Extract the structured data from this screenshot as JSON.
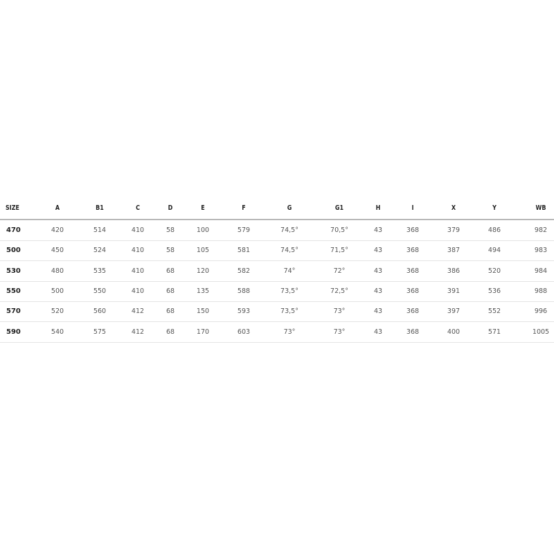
{
  "table": {
    "headers": [
      "SIZE",
      "A",
      "B1",
      "C",
      "D",
      "E",
      "F",
      "G",
      "G1",
      "H",
      "I",
      "X",
      "Y",
      "WB"
    ],
    "rows": [
      [
        "470",
        "420",
        "514",
        "410",
        "58",
        "100",
        "579",
        "74,5°",
        "70,5°",
        "43",
        "368",
        "379",
        "486",
        "982"
      ],
      [
        "500",
        "450",
        "524",
        "410",
        "58",
        "105",
        "581",
        "74,5°",
        "71,5°",
        "43",
        "368",
        "387",
        "494",
        "983"
      ],
      [
        "530",
        "480",
        "535",
        "410",
        "68",
        "120",
        "582",
        "74°",
        "72°",
        "43",
        "368",
        "386",
        "520",
        "984"
      ],
      [
        "550",
        "500",
        "550",
        "410",
        "68",
        "135",
        "588",
        "73,5°",
        "72,5°",
        "43",
        "368",
        "391",
        "536",
        "988"
      ],
      [
        "570",
        "520",
        "560",
        "412",
        "68",
        "150",
        "593",
        "73,5°",
        "73°",
        "43",
        "368",
        "397",
        "552",
        "996"
      ],
      [
        "590",
        "540",
        "575",
        "412",
        "68",
        "170",
        "603",
        "73°",
        "73°",
        "43",
        "368",
        "400",
        "571",
        "1005"
      ]
    ]
  }
}
